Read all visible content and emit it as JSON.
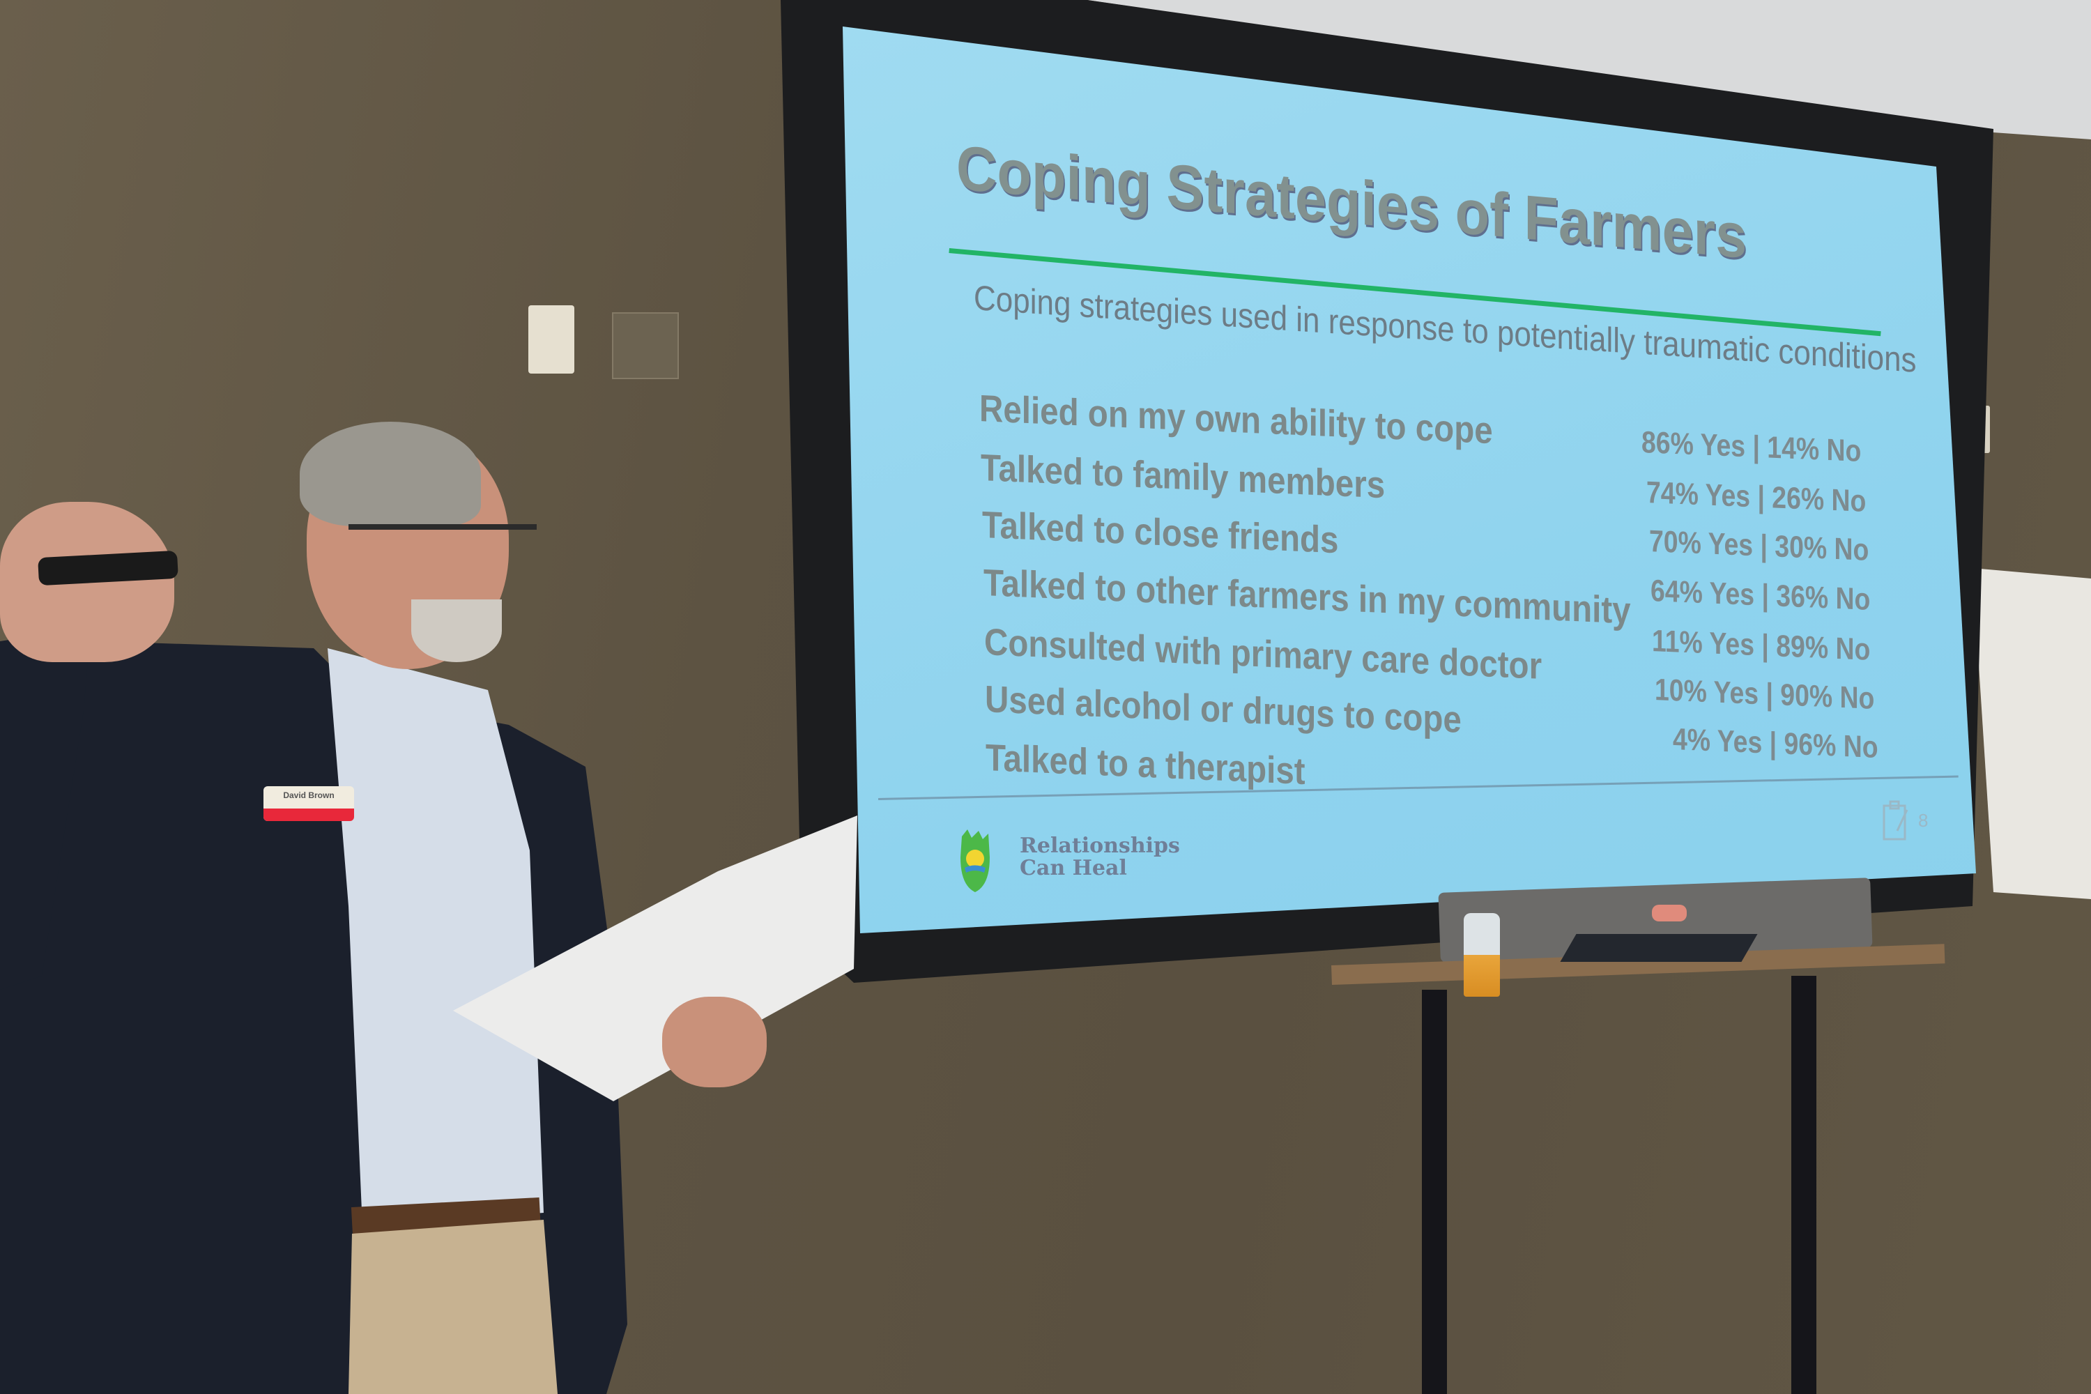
{
  "scene": {
    "wall_color": "#5e5443",
    "slide_background": "#8fd3ee",
    "accent_rule_color": "#22b466"
  },
  "slide": {
    "title": "Coping Strategies of Farmers",
    "subtitle": "Coping strategies used in response to potentially traumatic conditions",
    "rows": [
      {
        "label": "Relied on my own ability to cope",
        "value": "86% Yes | 14% No"
      },
      {
        "label": "Talked to family members",
        "value": "74% Yes | 26% No"
      },
      {
        "label": "Talked to close friends",
        "value": "70% Yes | 30% No"
      },
      {
        "label": "Talked to other farmers in my community",
        "value": "64% Yes | 36% No"
      },
      {
        "label": "Consulted with primary care doctor",
        "value": "11% Yes | 89% No"
      },
      {
        "label": "Used alcohol or drugs to cope",
        "value": "10% Yes | 90% No"
      },
      {
        "label": "Talked to a therapist",
        "value": "4% Yes | 96% No"
      }
    ],
    "footer": {
      "logo_text": "Relationships Can Heal",
      "logo_icon": "hands-sun-logo-icon",
      "clipboard_icon": "clipboard-icon",
      "page_number": "8"
    }
  },
  "presenter": {
    "badge_name": "David Brown"
  }
}
